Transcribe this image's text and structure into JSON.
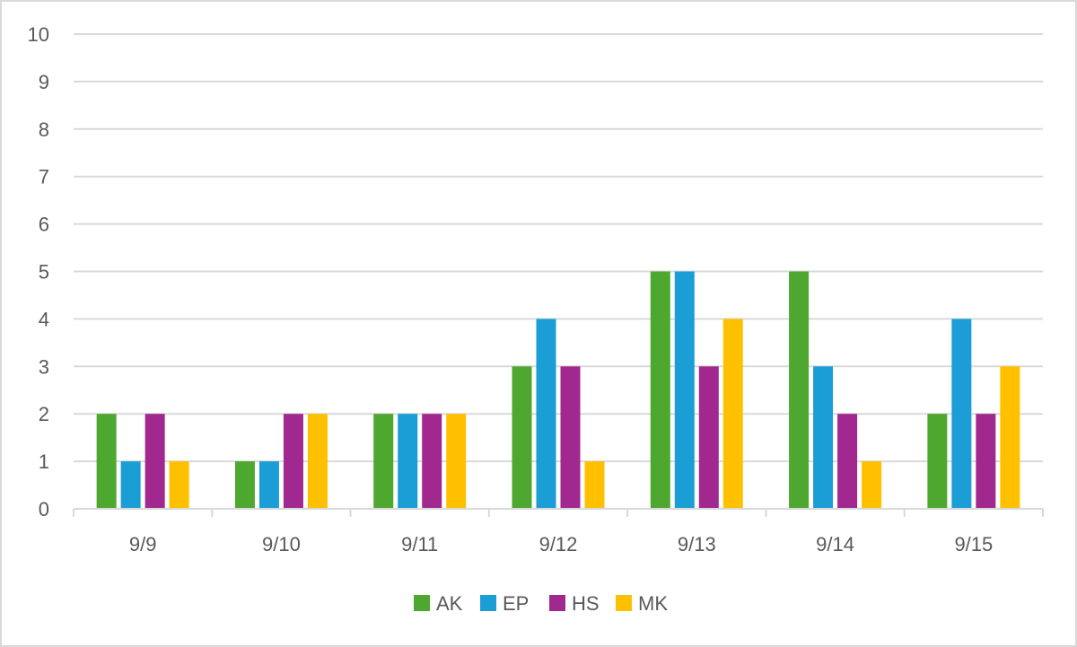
{
  "chart_data": {
    "type": "bar",
    "title": "",
    "xlabel": "",
    "ylabel": "",
    "categories": [
      "9/9",
      "9/10",
      "9/11",
      "9/12",
      "9/13",
      "9/14",
      "9/15"
    ],
    "series": [
      {
        "name": "AK",
        "color": "#4EA72E",
        "values": [
          2,
          1,
          2,
          3,
          5,
          5,
          2
        ]
      },
      {
        "name": "EP",
        "color": "#1B9DD6",
        "values": [
          1,
          1,
          2,
          4,
          5,
          3,
          4
        ]
      },
      {
        "name": "HS",
        "color": "#A0288F",
        "values": [
          2,
          2,
          2,
          3,
          3,
          2,
          2
        ]
      },
      {
        "name": "MK",
        "color": "#FFC000",
        "values": [
          1,
          2,
          2,
          1,
          4,
          1,
          3
        ]
      }
    ],
    "ylim": [
      0,
      10
    ],
    "yticks": [
      0,
      1,
      2,
      3,
      4,
      5,
      6,
      7,
      8,
      9,
      10
    ],
    "grid": true,
    "legend_position": "bottom"
  }
}
